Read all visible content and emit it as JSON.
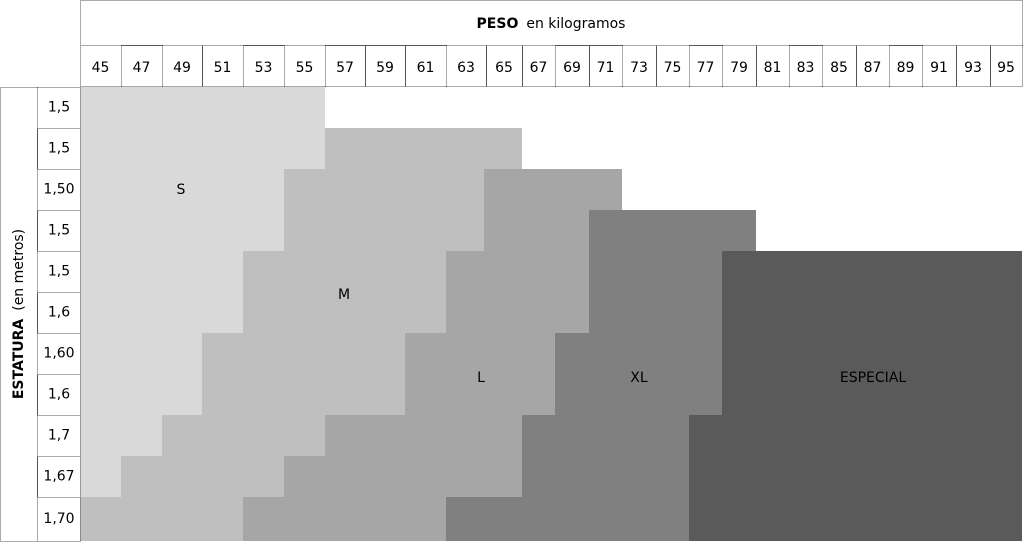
{
  "header": {
    "title": "PESO",
    "unit": "en kilogramos"
  },
  "weights": [
    45,
    47,
    49,
    51,
    53,
    55,
    57,
    59,
    61,
    63,
    65,
    67,
    69,
    71,
    73,
    75,
    77,
    79,
    81,
    83,
    85,
    87,
    89,
    91,
    93,
    95
  ],
  "side": {
    "title": "ESTATURA",
    "unit": "(en metros)"
  },
  "heights": [
    "1,5",
    "1,5",
    "1,50",
    "1,5",
    "1,5",
    "1,6",
    "1,60",
    "1,6",
    "1,7",
    "1,67",
    "1,70"
  ],
  "sizes": [
    "S",
    "M",
    "L",
    "XL",
    "ESPECIAL"
  ]
}
